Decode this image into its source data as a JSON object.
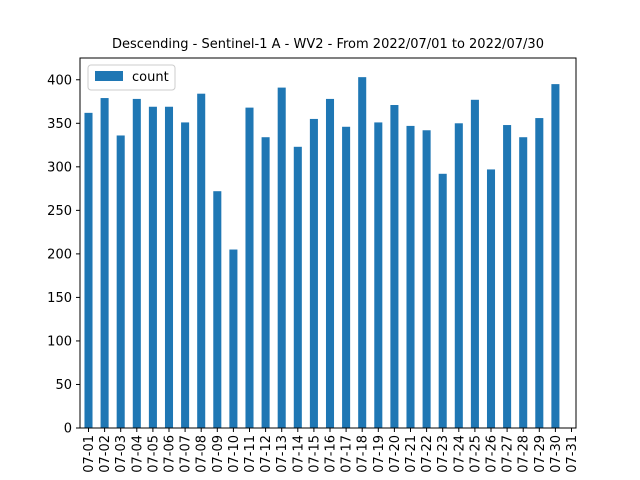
{
  "chart_data": {
    "type": "bar",
    "title": "Descending - Sentinel-1 A - WV2 - From 2022/07/01 to 2022/07/30",
    "xlabel": "",
    "ylabel": "",
    "ylim": [
      0,
      425
    ],
    "yticks": [
      0,
      50,
      100,
      150,
      200,
      250,
      300,
      350,
      400
    ],
    "categories": [
      "07-01",
      "07-02",
      "07-03",
      "07-04",
      "07-05",
      "07-06",
      "07-07",
      "07-08",
      "07-09",
      "07-10",
      "07-11",
      "07-12",
      "07-13",
      "07-14",
      "07-15",
      "07-16",
      "07-17",
      "07-18",
      "07-19",
      "07-20",
      "07-21",
      "07-22",
      "07-23",
      "07-24",
      "07-25",
      "07-26",
      "07-27",
      "07-28",
      "07-29",
      "07-30",
      "07-31"
    ],
    "series": [
      {
        "name": "count",
        "color": "#1f77b4",
        "values": [
          362,
          379,
          336,
          378,
          369,
          369,
          351,
          384,
          272,
          205,
          368,
          334,
          391,
          323,
          355,
          378,
          346,
          403,
          351,
          371,
          347,
          342,
          292,
          350,
          377,
          297,
          348,
          334,
          356,
          395,
          0
        ]
      }
    ],
    "legend": "top-left",
    "grid": false
  }
}
